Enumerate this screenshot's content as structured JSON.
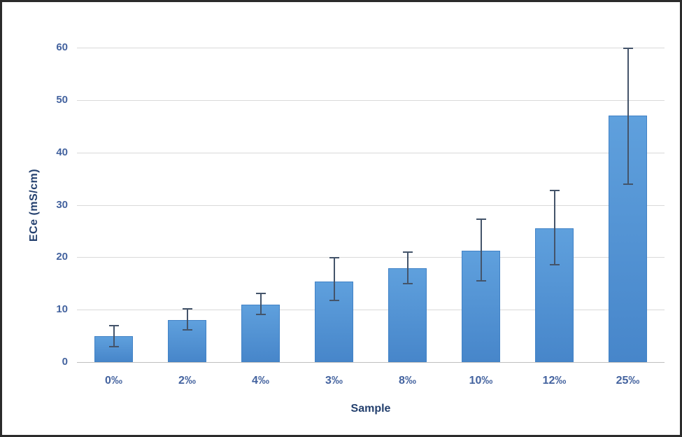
{
  "chart_data": {
    "type": "bar",
    "title": "",
    "xlabel": "Sample",
    "ylabel": "ECe (mS/cm)",
    "categories": [
      "0‰",
      "2‰",
      "4‰",
      "3‰",
      "8‰",
      "10‰",
      "12‰",
      "25‰"
    ],
    "series": [
      {
        "name": "ECe",
        "values": [
          4.9,
          8.0,
          11.0,
          15.4,
          17.9,
          21.2,
          25.5,
          47.0
        ],
        "error_plus": [
          2.0,
          2.1,
          2.1,
          4.5,
          3.1,
          6.1,
          7.2,
          12.8
        ],
        "error_minus": [
          1.9,
          1.8,
          1.9,
          3.7,
          2.9,
          5.7,
          6.9,
          13.0
        ]
      }
    ],
    "ylim": [
      0,
      60
    ],
    "yticks": [
      0,
      10,
      20,
      30,
      40,
      50,
      60
    ],
    "grid": true,
    "legend": false,
    "layout_hints": {
      "bar_orientation": "vertical",
      "error_bars": "both-directions",
      "gridlines": "horizontal-only"
    },
    "colors": {
      "bar_fill_top": "#5fa0dd",
      "bar_fill_bottom": "#4786ca",
      "bar_border": "#4182c6",
      "error_bar": "#44546a",
      "gridline": "#d9d9d9",
      "axis_line": "#bfbfbf",
      "tick_label": "#44639f",
      "axis_title": "#24406e",
      "frame": "#2b2b2b",
      "background": "#ffffff"
    }
  }
}
